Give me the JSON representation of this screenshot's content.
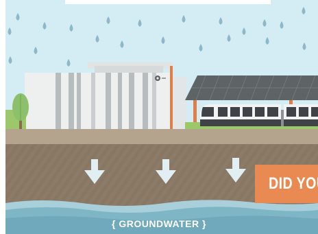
{
  "callout": {
    "label": "DID YOU"
  },
  "groundwater": {
    "label": "{ GROUNDWATER }"
  },
  "colors": {
    "sky": "#d4edf4",
    "raindrop": "#8db8c9",
    "building": "#eef0f0",
    "building_stripe": "#b7bcbf",
    "station_roof": "#5e6466",
    "station_post": "#e07e48",
    "train_body": "#f2f3f3",
    "train_window": "#3f4347",
    "grass": "#9cc76a",
    "tree": "#8cc06b",
    "platform": "#b4a48e",
    "soil": "#8c7a68",
    "arrow": "#e2eff2",
    "callout": "#e98a52",
    "water_light": "#a9cfdb",
    "water_dark": "#6fa9bb"
  },
  "icons": {
    "rain": "raindrop-icon",
    "arrow": "arrow-down-icon",
    "tree": "tree-icon",
    "logo": "circle-logo-icon"
  }
}
